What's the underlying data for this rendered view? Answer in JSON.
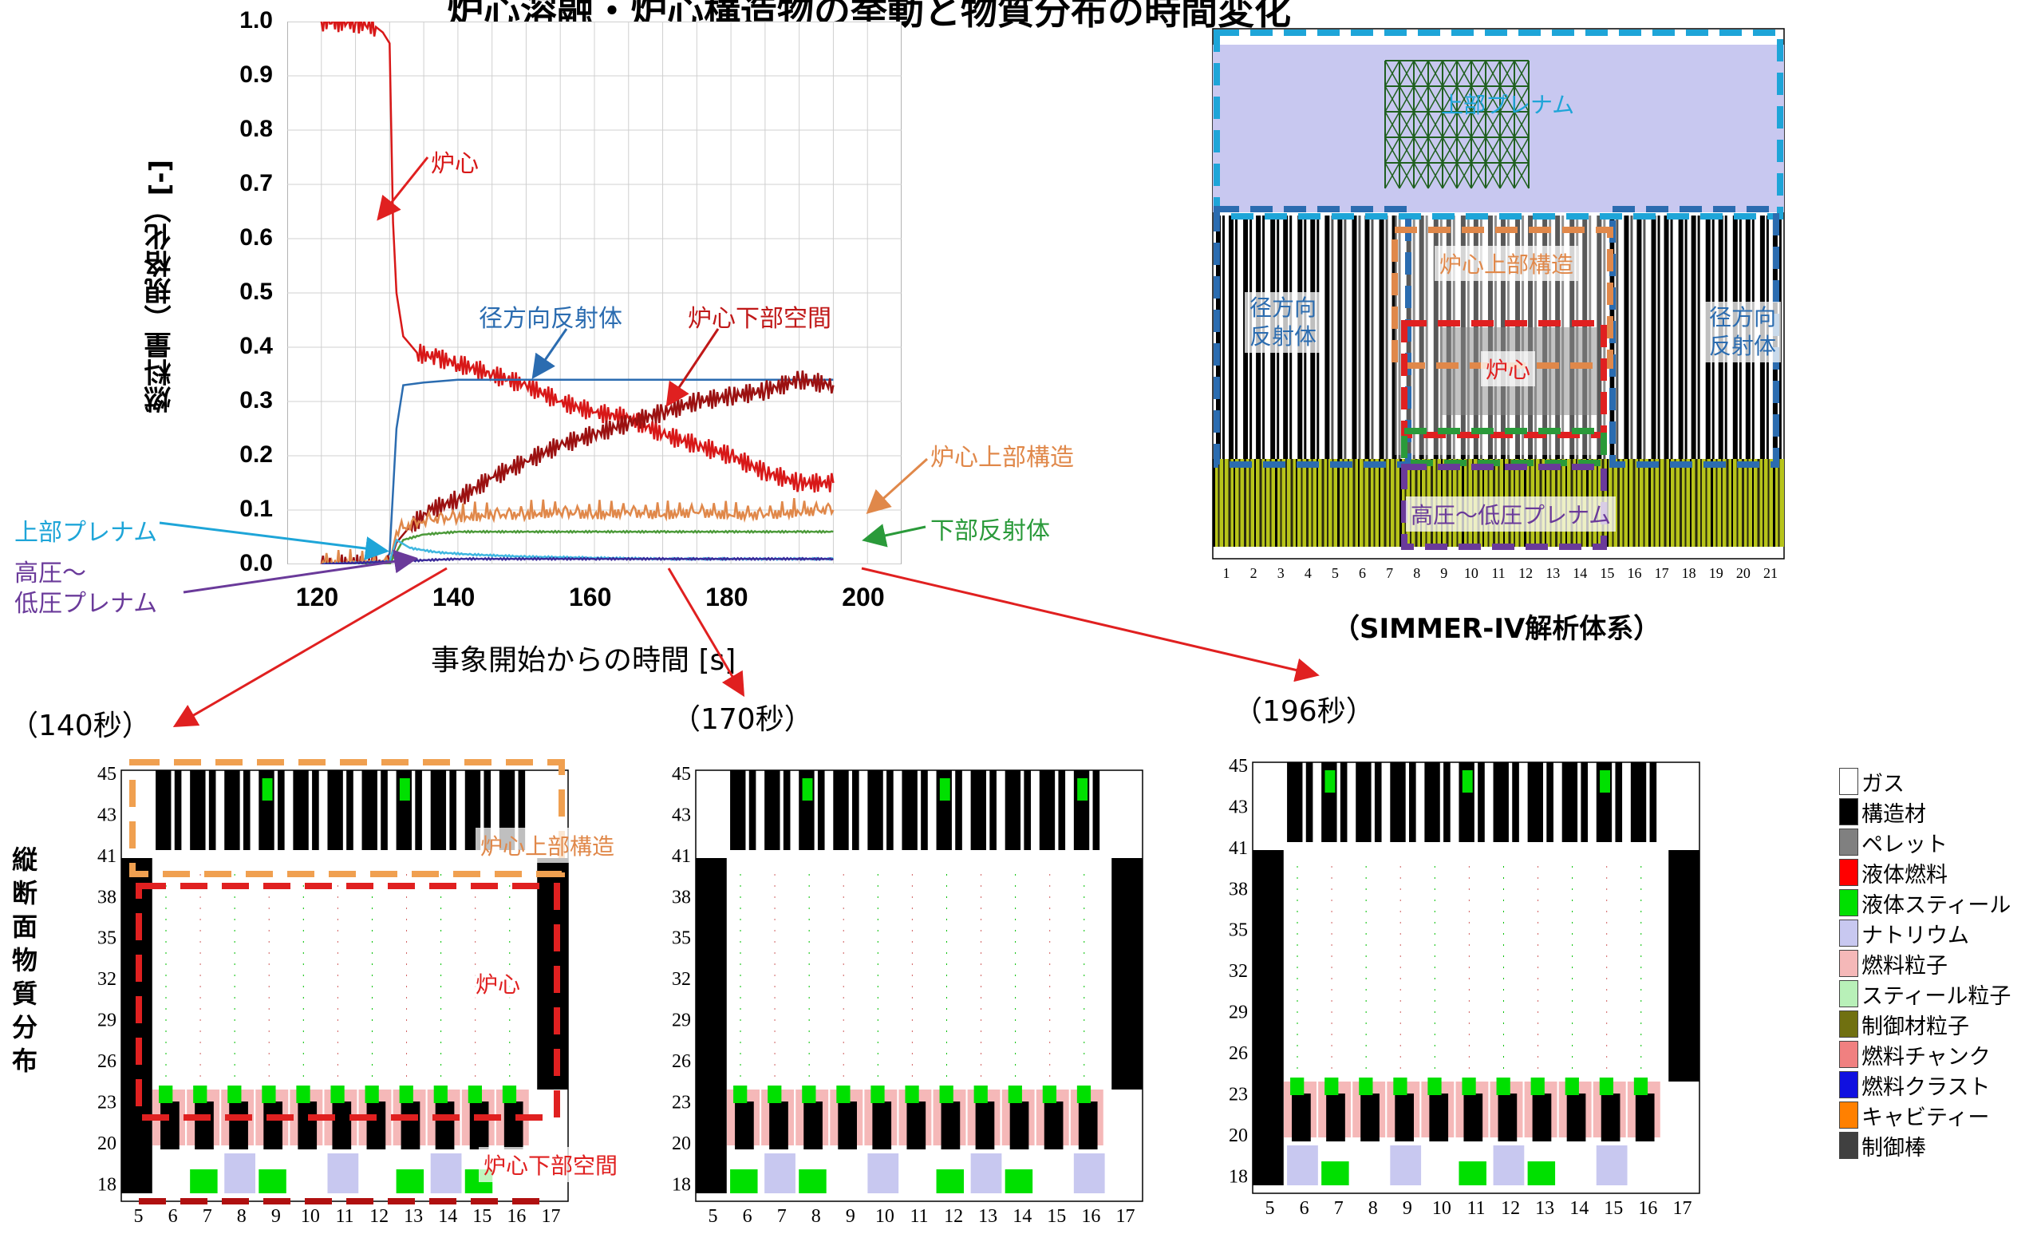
{
  "title": "炉心溶融・炉心構造物の挙動と物質分布の時間変化",
  "chart_data": {
    "type": "line",
    "xlabel": "事象開始からの時間 [s]",
    "ylabel": "燃料量（規格化）[-]",
    "xlim": [
      115,
      205
    ],
    "ylim": [
      0,
      1.0
    ],
    "xticks": [
      "120",
      "140",
      "160",
      "180",
      "200"
    ],
    "yticks": [
      "0.0",
      "0.1",
      "0.2",
      "0.3",
      "0.4",
      "0.5",
      "0.6",
      "0.7",
      "0.8",
      "0.9",
      "1.0"
    ],
    "grid": true,
    "series": [
      {
        "name": "炉心",
        "color": "#d81818",
        "x": [
          120,
          125,
          128,
          129,
          130,
          130.5,
          131,
          132,
          134,
          137,
          140,
          145,
          150,
          155,
          160,
          165,
          170,
          175,
          180,
          185,
          190,
          195
        ],
        "y": [
          1.0,
          0.997,
          0.99,
          0.98,
          0.96,
          0.63,
          0.5,
          0.42,
          0.39,
          0.38,
          0.37,
          0.35,
          0.33,
          0.3,
          0.28,
          0.27,
          0.24,
          0.22,
          0.2,
          0.17,
          0.15,
          0.15
        ]
      },
      {
        "name": "径方向反射体",
        "color": "#2b6cb0",
        "x": [
          120,
          129,
          130,
          131,
          132,
          135,
          140,
          150,
          160,
          170,
          180,
          190,
          195
        ],
        "y": [
          0,
          0,
          0.02,
          0.25,
          0.33,
          0.335,
          0.34,
          0.34,
          0.34,
          0.34,
          0.34,
          0.34,
          0.34
        ]
      },
      {
        "name": "炉心下部空間",
        "color": "#9b1111",
        "x": [
          120,
          130,
          131,
          133,
          136,
          140,
          145,
          150,
          155,
          160,
          165,
          170,
          175,
          180,
          185,
          190,
          195
        ],
        "y": [
          0,
          0,
          0.04,
          0.07,
          0.1,
          0.12,
          0.16,
          0.19,
          0.22,
          0.24,
          0.26,
          0.28,
          0.3,
          0.31,
          0.32,
          0.34,
          0.33
        ]
      },
      {
        "name": "炉心上部構造",
        "color": "#e0884a",
        "x": [
          120,
          130,
          131,
          135,
          140,
          145,
          150,
          155,
          160,
          165,
          170,
          175,
          180,
          185,
          190,
          195
        ],
        "y": [
          0,
          0,
          0.06,
          0.08,
          0.085,
          0.09,
          0.09,
          0.095,
          0.09,
          0.095,
          0.09,
          0.095,
          0.09,
          0.09,
          0.095,
          0.1
        ]
      },
      {
        "name": "下部反射体",
        "color": "#4c9a3a",
        "x": [
          120,
          130,
          132,
          135,
          140,
          150,
          160,
          170,
          180,
          190,
          195
        ],
        "y": [
          0,
          0,
          0.045,
          0.055,
          0.06,
          0.06,
          0.06,
          0.06,
          0.06,
          0.06,
          0.06
        ]
      },
      {
        "name": "上部プレナム",
        "color": "#3fb7e0",
        "x": [
          120,
          130,
          131,
          133,
          137,
          142,
          150,
          160,
          170,
          180,
          190,
          195
        ],
        "y": [
          0,
          0.005,
          0.045,
          0.03,
          0.022,
          0.018,
          0.014,
          0.012,
          0.01,
          0.01,
          0.01,
          0.01
        ]
      },
      {
        "name": "高圧～低圧プレナム",
        "color": "#3a2a9a",
        "x": [
          120,
          130,
          140,
          160,
          180,
          195
        ],
        "y": [
          0,
          0.005,
          0.01,
          0.01,
          0.01,
          0.01
        ]
      }
    ]
  },
  "chart_labels": {
    "core": "炉心",
    "radial_reflector": "径方向反射体",
    "core_lower_space": "炉心下部空間",
    "upper_structure": "炉心上部構造",
    "lower_reflector": "下部反射体",
    "upper_plenum": "上部プレナム",
    "hp_lp_plenum": "高圧～\n低圧プレナム"
  },
  "simmer": {
    "caption": "（SIMMER-IV解析体系）",
    "upper_plenum": "上部プレナム",
    "upper_structure": "炉心上部構造",
    "radial_left": "径方向\n反射体",
    "radial_right": "径方向\n反射体",
    "core": "炉心",
    "plenum": "高圧～低圧プレナム",
    "col_labels": [
      "1",
      "2",
      "3",
      "4",
      "5",
      "6",
      "7",
      "8",
      "9",
      "10",
      "11",
      "12",
      "13",
      "14",
      "15",
      "16",
      "17",
      "18",
      "19",
      "20",
      "21"
    ]
  },
  "snapshots": [
    {
      "time": "（140秒）",
      "rows": [
        "45",
        "43",
        "41",
        "38",
        "35",
        "32",
        "29",
        "26",
        "23",
        "20",
        "18"
      ],
      "cols": [
        "5",
        "6",
        "7",
        "8",
        "9",
        "10",
        "11",
        "12",
        "13",
        "14",
        "15",
        "16",
        "17"
      ],
      "labels": {
        "upper": "炉心上部構造",
        "core": "炉心",
        "lower": "炉心下部空間"
      }
    },
    {
      "time": "（170秒）",
      "rows": [
        "45",
        "43",
        "41",
        "38",
        "35",
        "32",
        "29",
        "26",
        "23",
        "20",
        "18"
      ],
      "cols": [
        "5",
        "6",
        "7",
        "8",
        "9",
        "10",
        "11",
        "12",
        "13",
        "14",
        "15",
        "16",
        "17"
      ]
    },
    {
      "time": "（196秒）",
      "rows": [
        "45",
        "43",
        "41",
        "38",
        "35",
        "32",
        "29",
        "26",
        "23",
        "20",
        "18"
      ],
      "cols": [
        "5",
        "6",
        "7",
        "8",
        "9",
        "10",
        "11",
        "12",
        "13",
        "14",
        "15",
        "16",
        "17"
      ]
    }
  ],
  "side_label": "縦断面物質分布",
  "legend": [
    {
      "label": "ガス",
      "color": "#ffffff"
    },
    {
      "label": "構造材",
      "color": "#000000"
    },
    {
      "label": "ペレット",
      "color": "#808080"
    },
    {
      "label": "液体燃料",
      "color": "#ff0000"
    },
    {
      "label": "液体スティール",
      "color": "#00e000"
    },
    {
      "label": "ナトリウム",
      "color": "#c8c8f0"
    },
    {
      "label": "燃料粒子",
      "color": "#f5b8b8"
    },
    {
      "label": "スティール粒子",
      "color": "#b8f0b8"
    },
    {
      "label": "制御材粒子",
      "color": "#707010"
    },
    {
      "label": "燃料チャンク",
      "color": "#f08080"
    },
    {
      "label": "燃料クラスト",
      "color": "#1010e0"
    },
    {
      "label": "キャビティー",
      "color": "#ff8000"
    },
    {
      "label": "制御棒",
      "color": "#404040"
    }
  ]
}
